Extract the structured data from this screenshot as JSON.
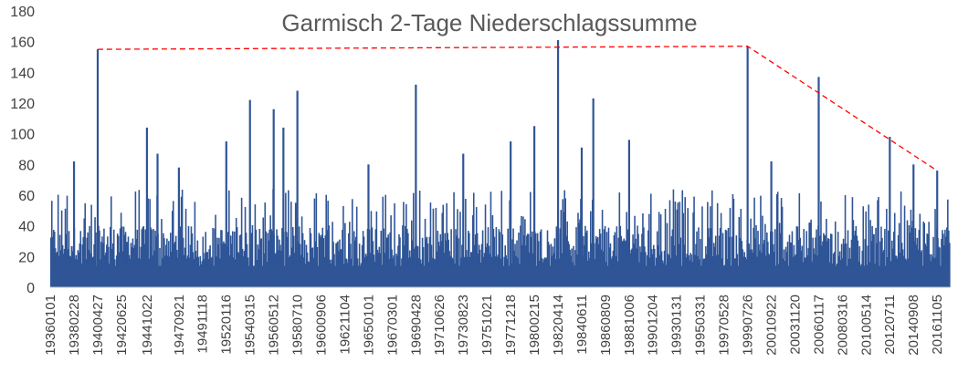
{
  "chart_data": {
    "type": "bar",
    "title": "Garmisch 2-Tage Niederschlagssumme",
    "xlabel": "",
    "ylabel": "",
    "ylim": [
      0,
      180
    ],
    "yticks": [
      0,
      20,
      40,
      60,
      80,
      100,
      120,
      140,
      160,
      180
    ],
    "grid": false,
    "legend": "none",
    "bar_color": "#2f5597",
    "trend_line_color": "#ff0000",
    "x_tick_labels": [
      "19360101",
      "19380228",
      "19400427",
      "19420625",
      "19441022",
      "19470921",
      "19491118",
      "19520116",
      "19540315",
      "19560512",
      "19580710",
      "19600906",
      "19621104",
      "19650101",
      "19670301",
      "19690428",
      "19710626",
      "19730823",
      "19751021",
      "19771218",
      "19800215",
      "19820414",
      "19840611",
      "19860809",
      "19881006",
      "19901204",
      "19930131",
      "19950331",
      "19970528",
      "19990726",
      "20010922",
      "20031120",
      "20060117",
      "20080316",
      "20100514",
      "20120711",
      "20140908",
      "20161105"
    ],
    "peaks": [
      {
        "x": "19380228",
        "value": 82
      },
      {
        "x": "19400427",
        "value": 155
      },
      {
        "x": "19441022",
        "value": 104
      },
      {
        "x": "19451010",
        "value": 87
      },
      {
        "x": "19470921",
        "value": 78
      },
      {
        "x": "19520116",
        "value": 95
      },
      {
        "x": "19540315",
        "value": 122
      },
      {
        "x": "19560512",
        "value": 116
      },
      {
        "x": "19570401",
        "value": 104
      },
      {
        "x": "19580710",
        "value": 128
      },
      {
        "x": "19650101",
        "value": 80
      },
      {
        "x": "19690428",
        "value": 132
      },
      {
        "x": "19730823",
        "value": 87
      },
      {
        "x": "19771218",
        "value": 95
      },
      {
        "x": "19800215",
        "value": 105
      },
      {
        "x": "19820414",
        "value": 161
      },
      {
        "x": "19840611",
        "value": 91
      },
      {
        "x": "19850701",
        "value": 123
      },
      {
        "x": "19881006",
        "value": 96
      },
      {
        "x": "19990726",
        "value": 157
      },
      {
        "x": "20010922",
        "value": 82
      },
      {
        "x": "20060117",
        "value": 137
      },
      {
        "x": "20120711",
        "value": 98
      },
      {
        "x": "20140908",
        "value": 80
      },
      {
        "x": "20161105",
        "value": 76
      }
    ],
    "trend_line": [
      {
        "x": "19400427",
        "value": 155
      },
      {
        "x": "19990726",
        "value": 157
      },
      {
        "x": "20161105",
        "value": 76
      }
    ]
  }
}
